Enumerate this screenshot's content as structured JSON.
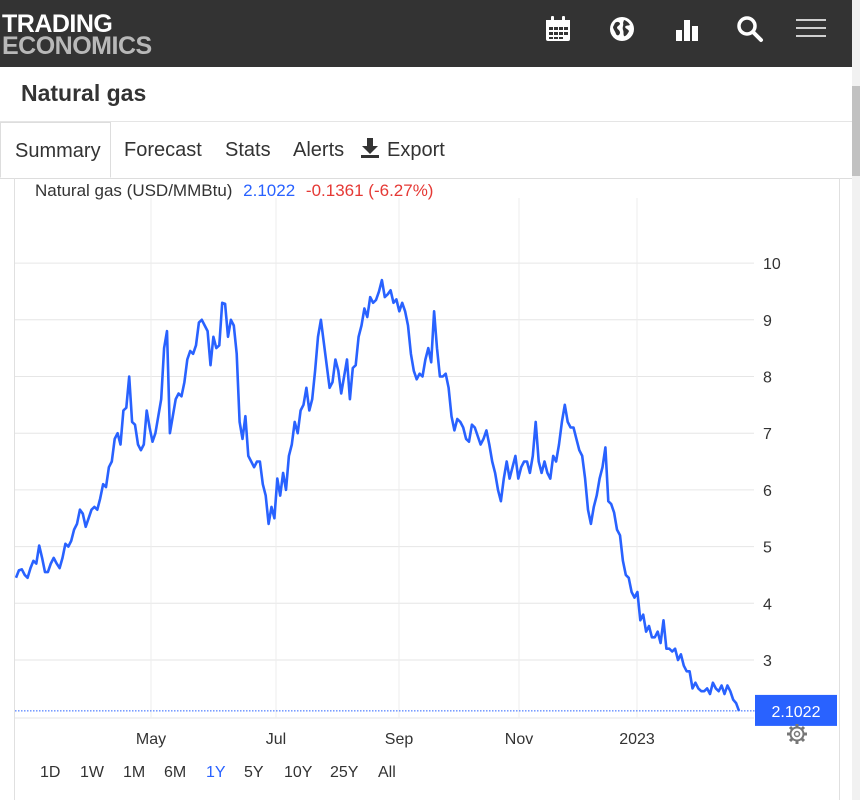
{
  "header": {
    "logo_line1": "TRADING",
    "logo_line2": "ECONOMICS",
    "icons": [
      "calendar-icon",
      "globe-icon",
      "bar-chart-icon",
      "search-icon",
      "menu-icon"
    ]
  },
  "page": {
    "title": "Natural gas"
  },
  "tabs": [
    {
      "label": "Summary",
      "active": true
    },
    {
      "label": "Forecast"
    },
    {
      "label": "Stats"
    },
    {
      "label": "Alerts"
    },
    {
      "label": "Export",
      "icon": "download-icon"
    }
  ],
  "quote": {
    "name": "Natural gas (USD/MMBtu)",
    "price": "2.1022",
    "change": "-0.1361 (-6.27%)",
    "price_color": "#2962ff",
    "change_color": "#e53935"
  },
  "chart_data": {
    "type": "line",
    "series": [
      {
        "name": "Natural gas (USD/MMBtu)",
        "color": "#2962ff",
        "values": [
          4.45,
          4.58,
          4.6,
          4.5,
          4.45,
          4.62,
          4.75,
          4.7,
          5.02,
          4.8,
          4.55,
          4.55,
          4.7,
          4.8,
          4.7,
          4.62,
          4.8,
          5.05,
          5.0,
          5.1,
          5.3,
          5.4,
          5.65,
          5.58,
          5.35,
          5.5,
          5.65,
          5.7,
          5.65,
          5.85,
          6.1,
          6.05,
          6.4,
          6.5,
          6.9,
          7.0,
          6.8,
          7.4,
          7.45,
          8.0,
          7.2,
          7.15,
          6.8,
          6.7,
          6.8,
          7.4,
          7.1,
          6.85,
          7.0,
          7.3,
          7.6,
          8.5,
          8.8,
          7.0,
          7.3,
          7.6,
          7.7,
          7.65,
          7.9,
          8.3,
          8.45,
          8.4,
          8.55,
          8.95,
          9.0,
          8.9,
          8.8,
          8.2,
          8.7,
          8.5,
          8.55,
          9.3,
          9.28,
          8.7,
          9.0,
          8.9,
          8.4,
          7.2,
          6.9,
          7.3,
          6.6,
          6.5,
          6.4,
          6.5,
          6.5,
          6.1,
          5.9,
          5.4,
          5.7,
          5.5,
          6.2,
          5.9,
          6.3,
          6.0,
          6.6,
          6.8,
          7.2,
          7.0,
          7.4,
          7.5,
          7.8,
          7.4,
          7.6,
          8.1,
          8.7,
          9.0,
          8.6,
          8.2,
          7.8,
          7.9,
          8.3,
          8.1,
          7.7,
          8.0,
          8.3,
          7.6,
          8.15,
          8.2,
          8.7,
          8.9,
          9.2,
          9.05,
          9.4,
          9.3,
          9.35,
          9.5,
          9.7,
          9.4,
          9.45,
          9.52,
          9.3,
          9.36,
          9.15,
          9.3,
          9.15,
          8.9,
          8.4,
          8.1,
          7.95,
          8.05,
          8.0,
          8.3,
          8.5,
          8.25,
          9.15,
          8.5,
          8.0,
          8.0,
          8.05,
          7.8,
          7.3,
          7.05,
          7.25,
          7.2,
          7.1,
          6.9,
          6.85,
          7.15,
          7.1,
          6.95,
          6.8,
          6.9,
          7.05,
          6.8,
          6.5,
          6.3,
          6.0,
          5.8,
          6.2,
          6.5,
          6.2,
          6.4,
          6.6,
          6.2,
          6.4,
          6.5,
          6.5,
          6.3,
          6.6,
          7.2,
          6.5,
          6.3,
          6.5,
          6.3,
          6.2,
          6.6,
          6.5,
          6.8,
          7.2,
          7.5,
          7.2,
          7.1,
          7.1,
          6.9,
          6.7,
          6.6,
          6.2,
          5.65,
          5.4,
          5.7,
          5.9,
          6.2,
          6.4,
          6.75,
          5.8,
          5.75,
          5.6,
          5.3,
          5.2,
          4.75,
          4.5,
          4.45,
          4.2,
          4.1,
          4.2,
          3.7,
          3.8,
          3.5,
          3.6,
          3.4,
          3.4,
          3.5,
          3.3,
          3.7,
          3.2,
          3.2,
          3.15,
          3.2,
          3.0,
          3.1,
          2.9,
          2.8,
          2.8,
          2.5,
          2.6,
          2.5,
          2.45,
          2.45,
          2.5,
          2.4,
          2.6,
          2.5,
          2.45,
          2.55,
          2.4,
          2.55,
          2.45,
          2.3,
          2.24,
          2.1022
        ]
      }
    ],
    "x_labels": [
      "May",
      "Jul",
      "Sep",
      "Nov",
      "2023"
    ],
    "y_ticks": [
      3,
      4,
      5,
      6,
      7,
      8,
      9,
      10
    ],
    "ylim": [
      2,
      10.4
    ],
    "last_value_label": "2.1022",
    "grid": true,
    "y_axis_side": "right"
  },
  "ranges": [
    {
      "label": "1D"
    },
    {
      "label": "1W"
    },
    {
      "label": "1M"
    },
    {
      "label": "6M"
    },
    {
      "label": "1Y",
      "active": true
    },
    {
      "label": "5Y"
    },
    {
      "label": "10Y"
    },
    {
      "label": "25Y"
    },
    {
      "label": "All"
    }
  ],
  "settings_icon": "gear-icon"
}
